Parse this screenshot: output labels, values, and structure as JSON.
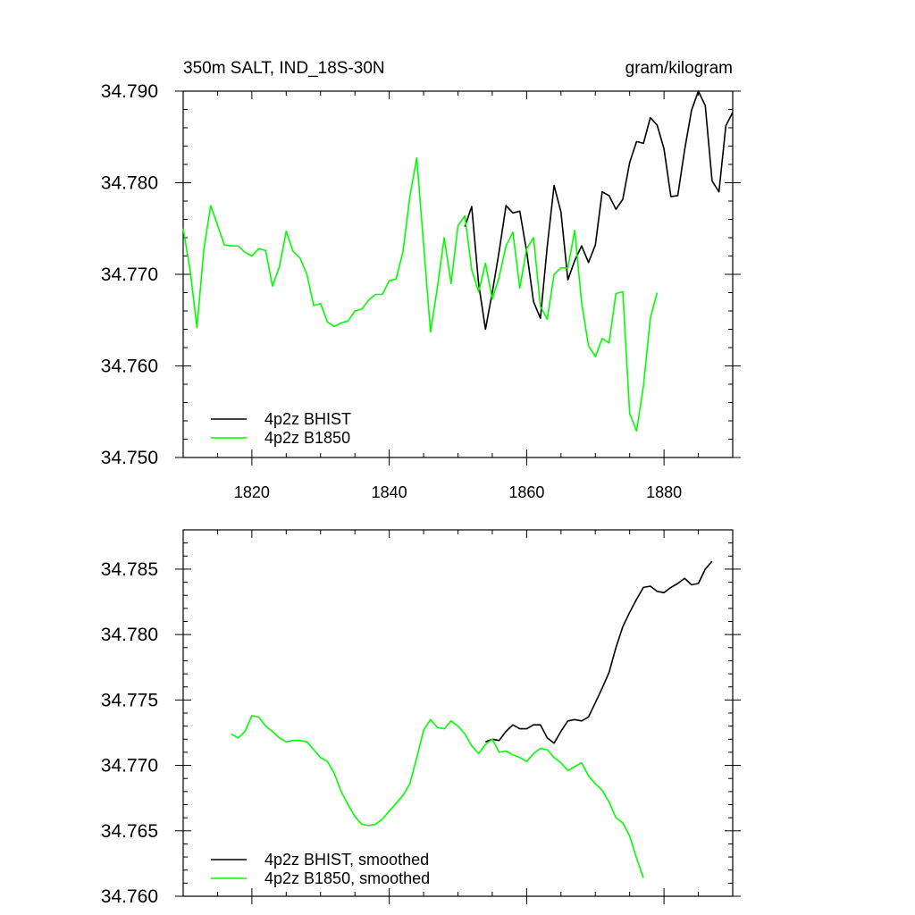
{
  "chart_data": [
    {
      "type": "line",
      "title_left": "350m SALT, IND_18S-30N",
      "title_right": "gram/kilogram",
      "xlabel": "",
      "ylabel": "",
      "xlim": [
        1810,
        1890
      ],
      "ylim": [
        34.75,
        34.79
      ],
      "xticks": [
        1820,
        1840,
        1860,
        1880
      ],
      "xtick_labels": [
        "1820",
        "1840",
        "1860",
        "1880"
      ],
      "yticks": [
        34.75,
        34.76,
        34.77,
        34.78,
        34.79
      ],
      "ytick_labels": [
        "34.750",
        "34.760",
        "34.770",
        "34.780",
        "34.790"
      ],
      "legend_position": "bottom-left",
      "series": [
        {
          "name": "4p2z BHIST",
          "color": "#000000",
          "x": [
            1851,
            1852,
            1853,
            1854,
            1855,
            1856,
            1857,
            1858,
            1859,
            1860,
            1861,
            1862,
            1863,
            1864,
            1865,
            1866,
            1867,
            1868,
            1869,
            1870,
            1871,
            1872,
            1873,
            1874,
            1875,
            1876,
            1877,
            1878,
            1879,
            1880,
            1881,
            1882,
            1883,
            1884,
            1885,
            1886,
            1887,
            1888,
            1889,
            1890
          ],
          "y": [
            34.7752,
            34.7774,
            34.769,
            34.764,
            34.768,
            34.7725,
            34.7775,
            34.7767,
            34.7769,
            34.7725,
            34.767,
            34.7652,
            34.773,
            34.7797,
            34.7768,
            34.7694,
            34.7715,
            34.7731,
            34.7713,
            34.7732,
            34.779,
            34.7786,
            34.7771,
            34.7782,
            34.7822,
            34.7845,
            34.7843,
            34.7871,
            34.7863,
            34.7837,
            34.7785,
            34.7786,
            34.7836,
            34.7879,
            34.79,
            34.7884,
            34.7802,
            34.779,
            34.7862,
            34.7877
          ]
        },
        {
          "name": "4p2z B1850",
          "color": "#00ff00",
          "x": [
            1810,
            1811,
            1812,
            1813,
            1814,
            1815,
            1816,
            1817,
            1818,
            1819,
            1820,
            1821,
            1822,
            1823,
            1824,
            1825,
            1826,
            1827,
            1828,
            1829,
            1830,
            1831,
            1832,
            1833,
            1834,
            1835,
            1836,
            1837,
            1838,
            1839,
            1840,
            1841,
            1842,
            1843,
            1844,
            1845,
            1846,
            1847,
            1848,
            1849,
            1850,
            1851,
            1852,
            1853,
            1854,
            1855,
            1856,
            1857,
            1858,
            1859,
            1860,
            1861,
            1862,
            1863,
            1864,
            1865,
            1866,
            1867,
            1868,
            1869,
            1870,
            1871,
            1872,
            1873,
            1874,
            1875,
            1876,
            1877,
            1878,
            1879
          ],
          "y": [
            34.775,
            34.7705,
            34.7642,
            34.7727,
            34.7775,
            34.7754,
            34.7732,
            34.7731,
            34.7731,
            34.7724,
            34.772,
            34.7728,
            34.7726,
            34.7687,
            34.7708,
            34.7747,
            34.7725,
            34.7718,
            34.77,
            34.7666,
            34.7668,
            34.7648,
            34.7643,
            34.7647,
            34.7649,
            34.766,
            34.7662,
            34.7672,
            34.7678,
            34.7678,
            34.7693,
            34.7695,
            34.7725,
            34.7785,
            34.7827,
            34.7732,
            34.7637,
            34.7685,
            34.774,
            34.769,
            34.7753,
            34.7764,
            34.7705,
            34.7681,
            34.7712,
            34.7673,
            34.7697,
            34.7731,
            34.7746,
            34.7685,
            34.7728,
            34.774,
            34.7665,
            34.7651,
            34.77,
            34.7707,
            34.7707,
            34.7748,
            34.7669,
            34.7622,
            34.761,
            34.763,
            34.7625,
            34.7679,
            34.7681,
            34.7548,
            34.7529,
            34.7578,
            34.7652,
            34.768
          ]
        }
      ]
    },
    {
      "type": "line",
      "title_left": "",
      "title_right": "",
      "xlabel": "",
      "ylabel": "",
      "xlim": [
        1810,
        1890
      ],
      "ylim": [
        34.76,
        34.788
      ],
      "xticks": [
        1820,
        1840,
        1860,
        1880
      ],
      "xtick_labels": [
        "",
        "",
        "",
        ""
      ],
      "yticks": [
        34.76,
        34.765,
        34.77,
        34.775,
        34.78,
        34.785
      ],
      "ytick_labels": [
        "34.760",
        "34.765",
        "34.770",
        "34.775",
        "34.780",
        "34.785"
      ],
      "legend_position": "bottom-left",
      "series": [
        {
          "name": "4p2z BHIST, smoothed",
          "color": "#000000",
          "x": [
            1854,
            1855,
            1856,
            1857,
            1858,
            1859,
            1860,
            1861,
            1862,
            1863,
            1864,
            1865,
            1866,
            1867,
            1868,
            1869,
            1870,
            1871,
            1872,
            1873,
            1874,
            1875,
            1876,
            1877,
            1878,
            1879,
            1880,
            1881,
            1882,
            1883,
            1884,
            1885,
            1886,
            1887
          ],
          "y": [
            34.7718,
            34.772,
            34.7719,
            34.7726,
            34.7731,
            34.7728,
            34.7728,
            34.7731,
            34.7731,
            34.7721,
            34.7717,
            34.7726,
            34.7734,
            34.7735,
            34.7734,
            34.7737,
            34.7748,
            34.7759,
            34.7771,
            34.779,
            34.7806,
            34.7817,
            34.7827,
            34.7836,
            34.7837,
            34.7833,
            34.7832,
            34.7836,
            34.7839,
            34.7843,
            34.7838,
            34.7839,
            34.785,
            34.7856
          ]
        },
        {
          "name": "4p2z B1850, smoothed",
          "color": "#00ff00",
          "x": [
            1817,
            1818,
            1819,
            1820,
            1821,
            1822,
            1823,
            1824,
            1825,
            1826,
            1827,
            1828,
            1829,
            1830,
            1831,
            1832,
            1833,
            1834,
            1835,
            1836,
            1837,
            1838,
            1839,
            1840,
            1841,
            1842,
            1843,
            1844,
            1845,
            1846,
            1847,
            1848,
            1849,
            1850,
            1851,
            1852,
            1853,
            1854,
            1855,
            1856,
            1857,
            1858,
            1859,
            1860,
            1861,
            1862,
            1863,
            1864,
            1865,
            1866,
            1867,
            1868,
            1869,
            1870,
            1871,
            1872,
            1873,
            1874,
            1875,
            1876,
            1877
          ],
          "y": [
            34.7724,
            34.7721,
            34.7726,
            34.7738,
            34.7737,
            34.773,
            34.7726,
            34.7721,
            34.7718,
            34.7719,
            34.7719,
            34.7718,
            34.7712,
            34.7706,
            34.7703,
            34.7694,
            34.768,
            34.767,
            34.7661,
            34.7655,
            34.7654,
            34.7655,
            34.7659,
            34.7665,
            34.7671,
            34.7677,
            34.7686,
            34.7706,
            34.7727,
            34.7735,
            34.7729,
            34.7728,
            34.7734,
            34.773,
            34.7724,
            34.7715,
            34.7709,
            34.7716,
            34.772,
            34.771,
            34.7711,
            34.7708,
            34.7706,
            34.7703,
            34.7709,
            34.7713,
            34.7712,
            34.7706,
            34.7702,
            34.7696,
            34.7699,
            34.7702,
            34.7692,
            34.7686,
            34.7681,
            34.7672,
            34.766,
            34.7656,
            34.7646,
            34.7629,
            34.7614
          ]
        }
      ]
    }
  ]
}
